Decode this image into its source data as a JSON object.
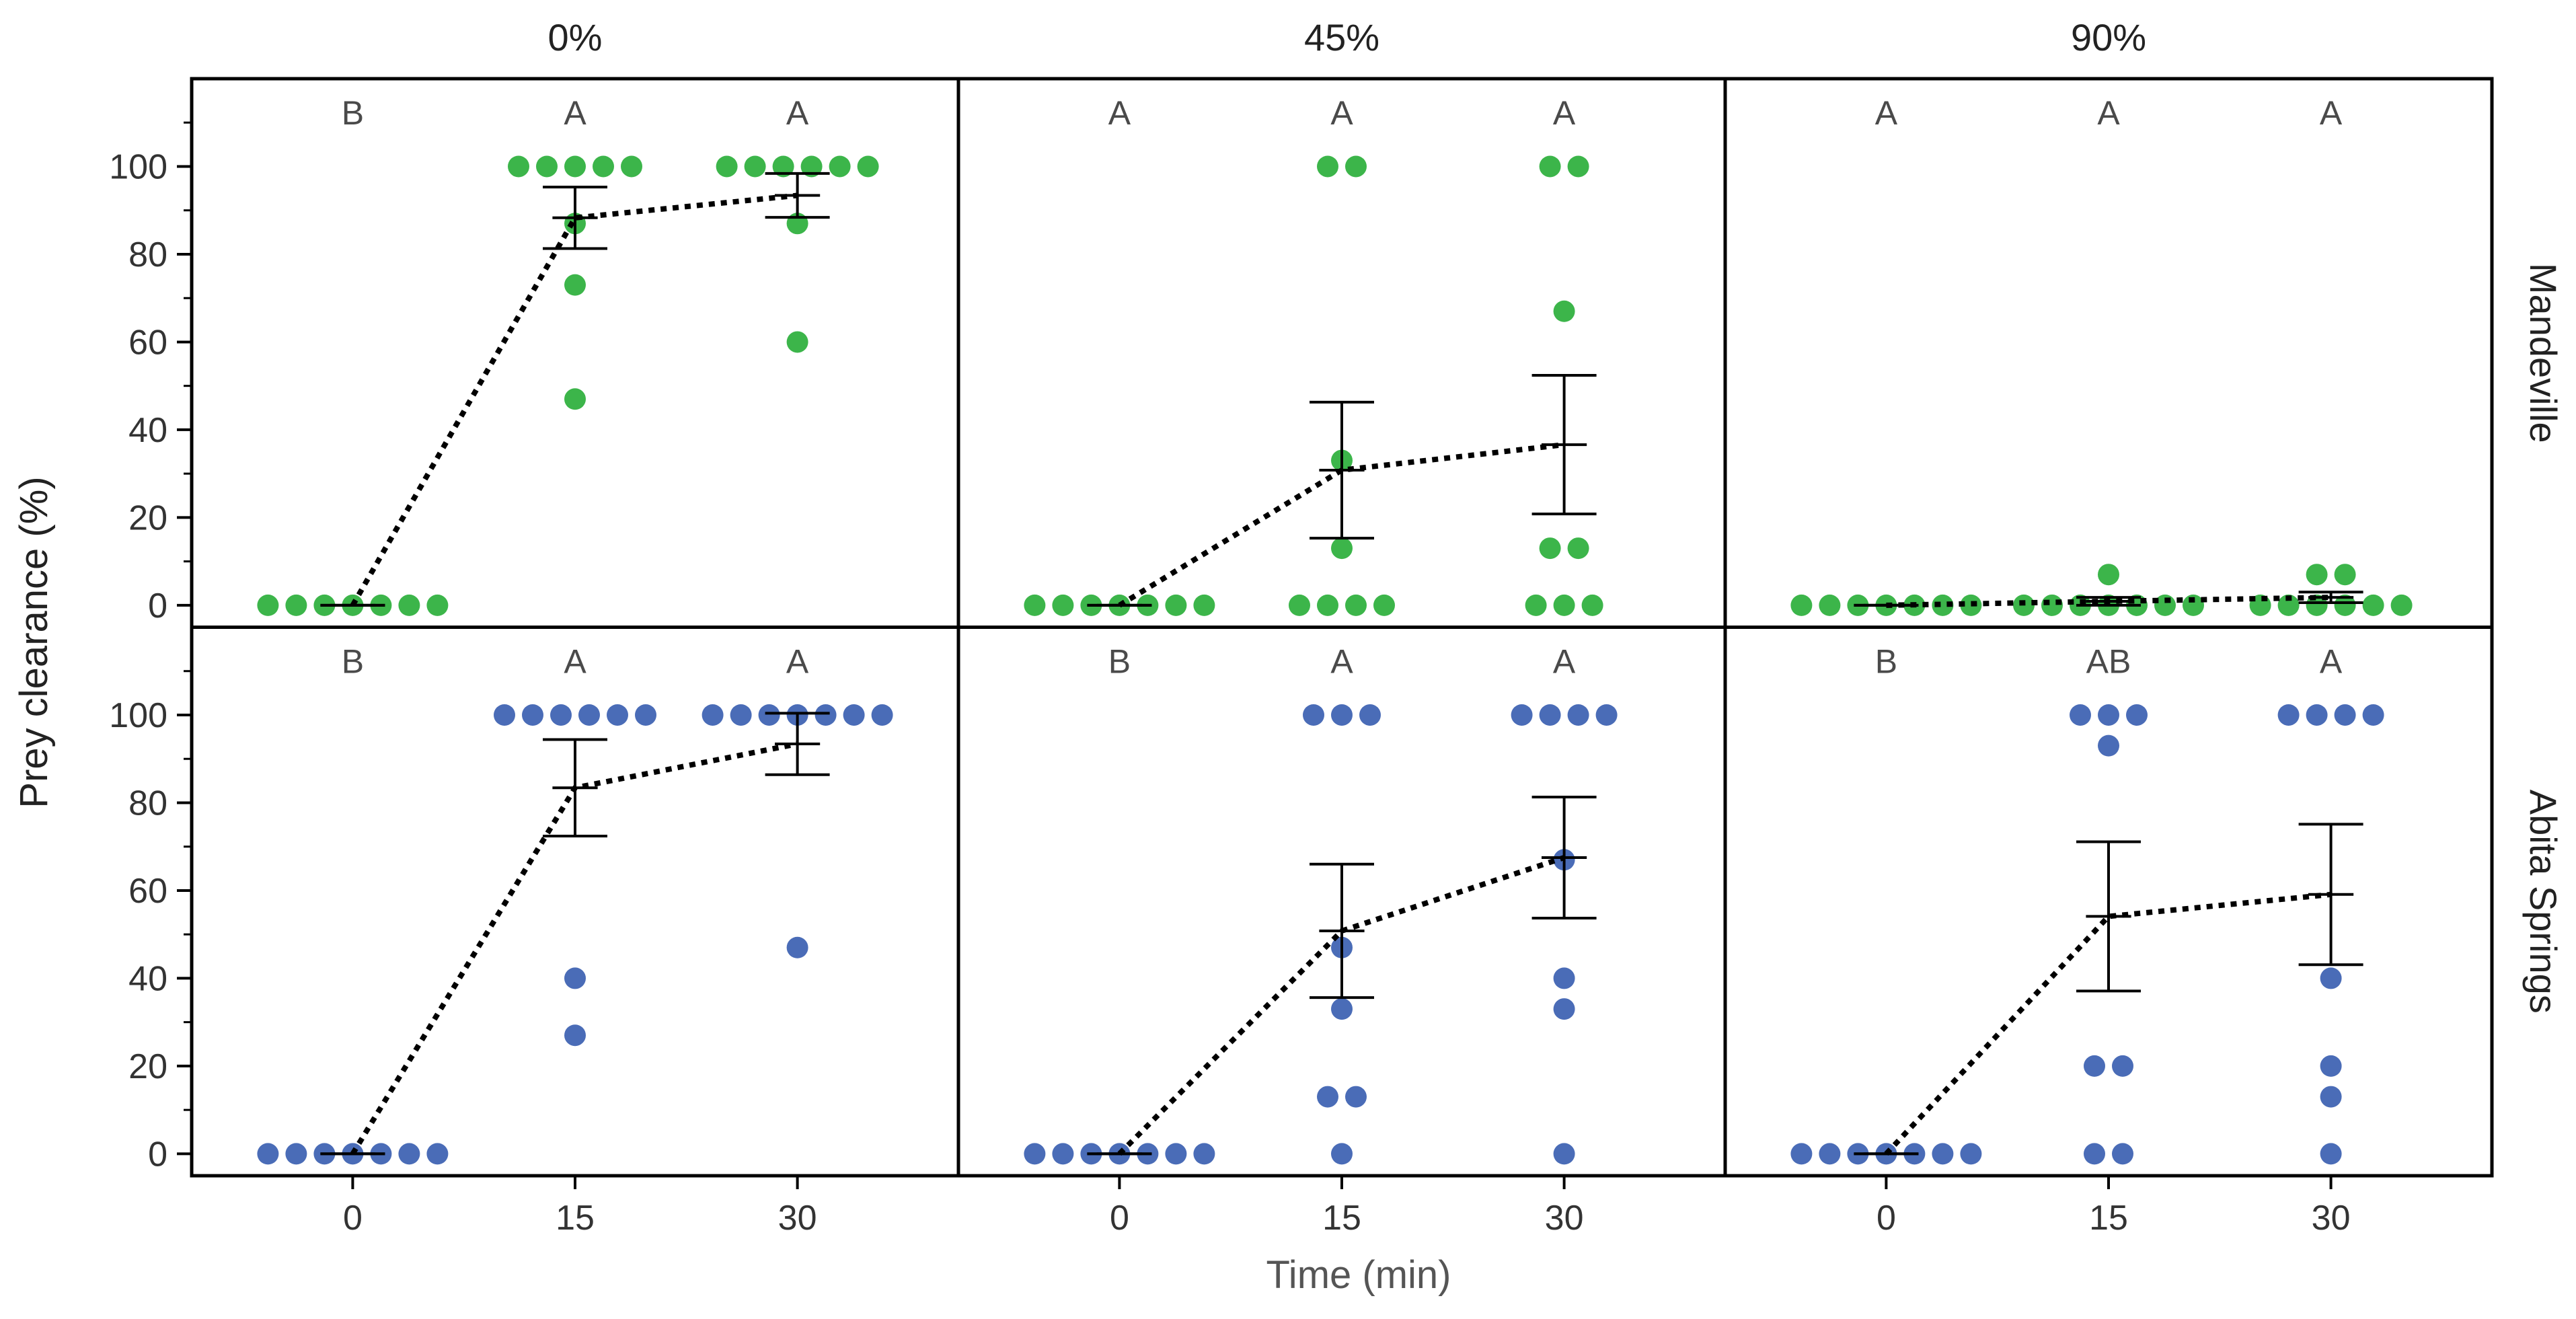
{
  "chart_data": {
    "type": "scatter",
    "layout": "faceted grid: 2 rows x 3 columns, dot plot with mean +/- SE and dashed mean line",
    "ylabel": "Prey clearance (%)",
    "xlabel": "Time (min)",
    "ylim": [
      -5,
      120
    ],
    "y_ticks": [
      0,
      20,
      40,
      60,
      80,
      100
    ],
    "x_categories": [
      "0",
      "15",
      "30"
    ],
    "columns": [
      "0%",
      "45%",
      "90%"
    ],
    "rows": [
      {
        "name": "Mandeville",
        "color": "#3cb54a"
      },
      {
        "name": "Abita Springs",
        "color": "#4a6cb7"
      }
    ],
    "panels": [
      {
        "row": 0,
        "col": 0,
        "letters": [
          "B",
          "A",
          "A"
        ],
        "points": [
          [
            0,
            0,
            0,
            0,
            0,
            0,
            0
          ],
          [
            100,
            100,
            100,
            100,
            100,
            87,
            73,
            47
          ],
          [
            100,
            100,
            100,
            100,
            100,
            100,
            87,
            60
          ]
        ],
        "means": [
          0,
          88.3,
          93.4
        ],
        "errors": [
          0,
          7,
          5
        ]
      },
      {
        "row": 0,
        "col": 1,
        "letters": [
          "A",
          "A",
          "A"
        ],
        "points": [
          [
            0,
            0,
            0,
            0,
            0,
            0,
            0
          ],
          [
            100,
            100,
            33,
            13,
            0,
            0,
            0,
            0
          ],
          [
            100,
            100,
            67,
            13,
            13,
            0,
            0,
            0
          ]
        ],
        "means": [
          0,
          30.8,
          36.6
        ],
        "errors": [
          0,
          15.5,
          15.8
        ]
      },
      {
        "row": 0,
        "col": 2,
        "letters": [
          "A",
          "A",
          "A"
        ],
        "points": [
          [
            0,
            0,
            0,
            0,
            0,
            0,
            0
          ],
          [
            7,
            0,
            0,
            0,
            0,
            0,
            0,
            0
          ],
          [
            7,
            7,
            0,
            0,
            0,
            0,
            0,
            0
          ]
        ],
        "means": [
          0,
          0.9,
          1.8
        ],
        "errors": [
          0,
          0.9,
          1.2
        ]
      },
      {
        "row": 1,
        "col": 0,
        "letters": [
          "B",
          "A",
          "A"
        ],
        "points": [
          [
            0,
            0,
            0,
            0,
            0,
            0,
            0
          ],
          [
            100,
            100,
            100,
            100,
            100,
            100,
            40,
            27
          ],
          [
            100,
            100,
            100,
            100,
            100,
            100,
            100,
            47
          ]
        ],
        "means": [
          0,
          83.4,
          93.4
        ],
        "errors": [
          0,
          11,
          7
        ]
      },
      {
        "row": 1,
        "col": 1,
        "letters": [
          "B",
          "A",
          "A"
        ],
        "points": [
          [
            0,
            0,
            0,
            0,
            0,
            0,
            0
          ],
          [
            100,
            100,
            100,
            47,
            33,
            13,
            13,
            0
          ],
          [
            100,
            100,
            100,
            100,
            67,
            40,
            33,
            0
          ]
        ],
        "means": [
          0,
          50.8,
          67.5
        ],
        "errors": [
          0,
          15.2,
          13.8
        ]
      },
      {
        "row": 1,
        "col": 2,
        "letters": [
          "B",
          "AB",
          "A"
        ],
        "points": [
          [
            0,
            0,
            0,
            0,
            0,
            0,
            0
          ],
          [
            100,
            100,
            100,
            93,
            20,
            20,
            0,
            0
          ],
          [
            100,
            100,
            100,
            100,
            40,
            20,
            13,
            0
          ]
        ],
        "means": [
          0,
          54.1,
          59.1
        ],
        "errors": [
          0,
          17,
          16
        ]
      }
    ]
  }
}
